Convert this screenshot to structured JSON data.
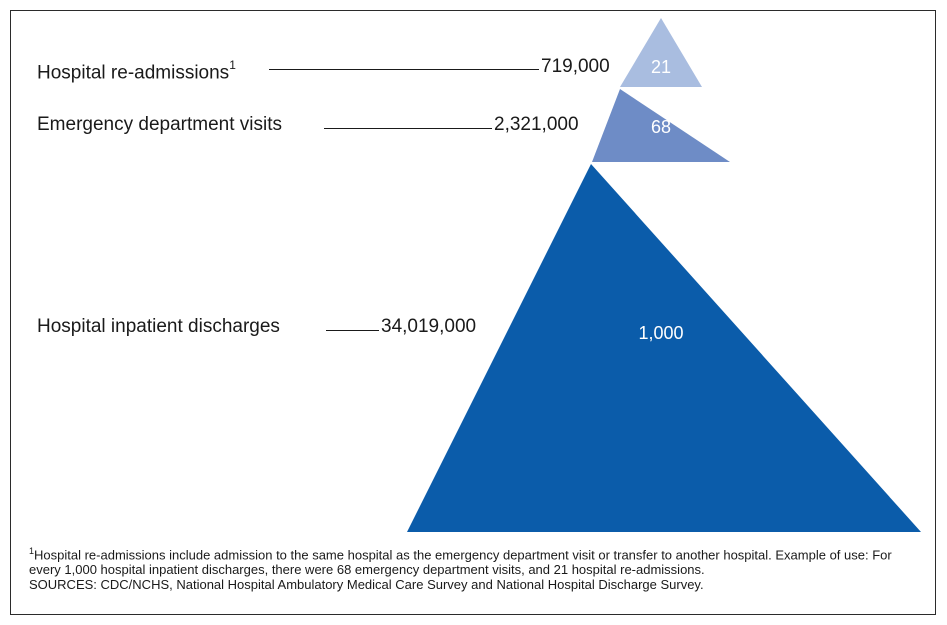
{
  "chart_data": {
    "type": "pyramid",
    "title": "",
    "tiers": [
      {
        "name": "Hospital re-admissions",
        "footnote_mark": "1",
        "count_label": "719,000",
        "rate_label": "21",
        "rate": 21,
        "color": "#a9bde0"
      },
      {
        "name": "Emergency department visits",
        "footnote_mark": "",
        "count_label": "2,321,000",
        "rate_label": "68",
        "rate": 68,
        "color": "#6e8cc6"
      },
      {
        "name": "Hospital inpatient discharges",
        "footnote_mark": "",
        "count_label": "34,019,000",
        "rate_label": "1,000",
        "rate": 1000,
        "color": "#0b5caa"
      }
    ]
  },
  "footnote": {
    "mark": "1",
    "text": "Hospital re-admissions include admission to the same hospital as the emergency department visit or transfer to another hospital. Example of use:  For every 1,000 hospital inpatient discharges, there were 68 emergency department visits, and 21 hospital re-admissions.",
    "sources": "SOURCES: CDC/NCHS, National Hospital Ambulatory Medical Care Survey and National Hospital Discharge Survey."
  }
}
